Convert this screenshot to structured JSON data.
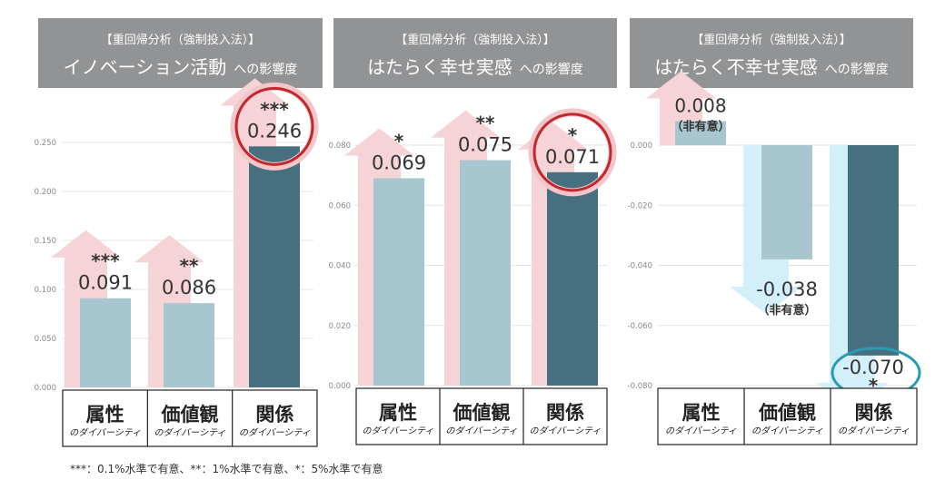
{
  "colors": {
    "header_bg": "#929395",
    "bar_light": "#a8c6cf",
    "bar_dark": "#46707f",
    "up_arrow": "#f6d3d6",
    "down_arrow": "#d3f0fa",
    "circle_red": "#c0282f",
    "circle_teal": "#2a9bb5",
    "grid": "#e3e3e3"
  },
  "footnote": "***：0.1%水準で有意、**：1%水準で有意、*：5%水準で有意",
  "chart_data": [
    {
      "type": "bar",
      "title_line1": "【重回帰分析（強制投入法）】",
      "title_main": "イノベーション活動",
      "title_suffix": "への影響度",
      "categories": [
        {
          "main": "属性",
          "sub": "のダイバーシティ"
        },
        {
          "main": "価値観",
          "sub": "のダイバーシティ"
        },
        {
          "main": "関係",
          "sub": "のダイバーシティ"
        }
      ],
      "values": [
        0.091,
        0.086,
        0.246
      ],
      "value_labels": [
        "0.091",
        "0.086",
        "0.246"
      ],
      "significance": [
        "***",
        "**",
        "***"
      ],
      "highlight": [
        false,
        false,
        true
      ],
      "yticks": [
        "0.250",
        "0.200",
        "0.150",
        "0.100",
        "0.050",
        "0.000"
      ],
      "ylim": [
        0,
        0.25
      ],
      "grid": true
    },
    {
      "type": "bar",
      "title_line1": "【重回帰分析（強制投入法）】",
      "title_main": "はたらく幸せ実感",
      "title_suffix": "への影響度",
      "categories": [
        {
          "main": "属性",
          "sub": "のダイバーシティ"
        },
        {
          "main": "価値観",
          "sub": "のダイバーシティ"
        },
        {
          "main": "関係",
          "sub": "のダイバーシティ"
        }
      ],
      "values": [
        0.069,
        0.075,
        0.071
      ],
      "value_labels": [
        "0.069",
        "0.075",
        "0.071"
      ],
      "significance": [
        "*",
        "**",
        "*"
      ],
      "highlight": [
        false,
        false,
        true
      ],
      "yticks": [
        "0.080",
        "0.060",
        "0.040",
        "0.020",
        "0.000"
      ],
      "ylim": [
        0,
        0.08
      ],
      "grid": true
    },
    {
      "type": "bar",
      "title_line1": "【重回帰分析（強制投入法）】",
      "title_main": "はたらく不幸せ実感",
      "title_suffix": "への影響度",
      "categories": [
        {
          "main": "属性",
          "sub": "のダイバーシティ"
        },
        {
          "main": "価値観",
          "sub": "のダイバーシティ"
        },
        {
          "main": "関係",
          "sub": "のダイバーシティ"
        }
      ],
      "values": [
        0.008,
        -0.038,
        -0.07
      ],
      "value_labels": [
        "0.008",
        "-0.038",
        "-0.070"
      ],
      "significance": [
        "（非有意）",
        "（非有意）",
        "*"
      ],
      "highlight": [
        false,
        false,
        true
      ],
      "yticks": [
        "0.000",
        "-0.020",
        "-0.040",
        "-0.060",
        "-0.080"
      ],
      "ylim": [
        -0.08,
        0
      ],
      "grid": true
    }
  ]
}
